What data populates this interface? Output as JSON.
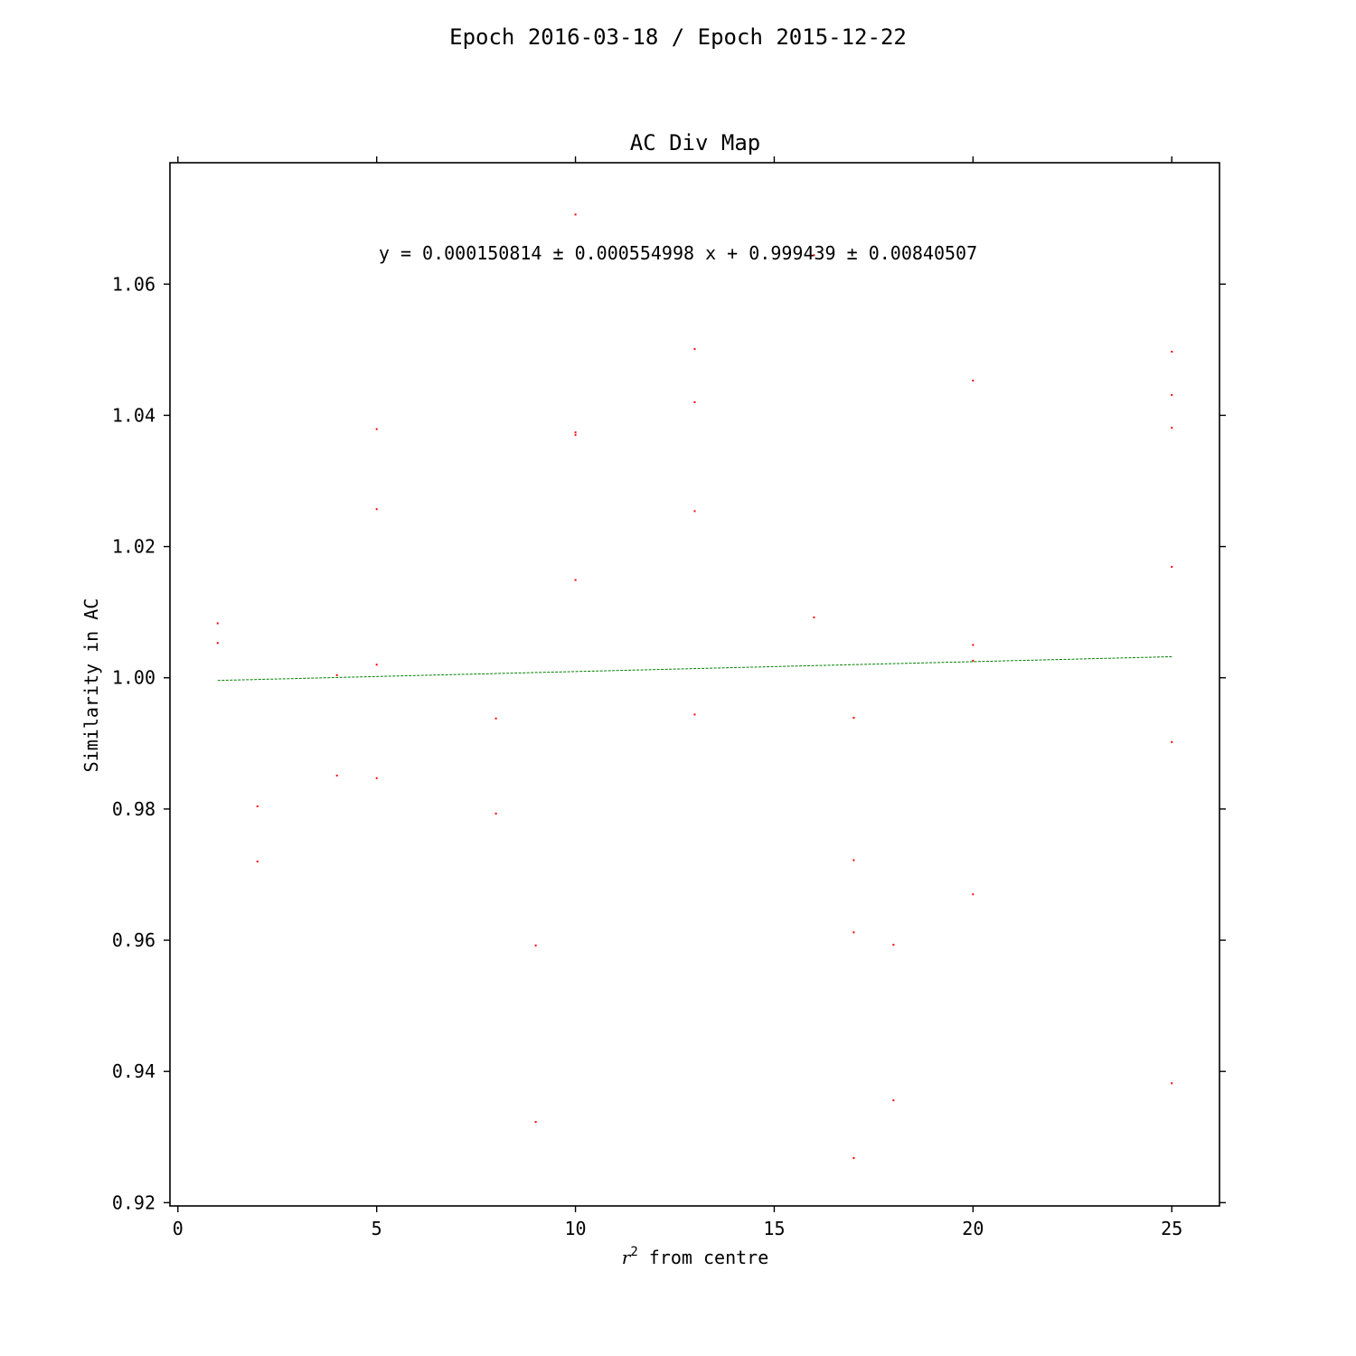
{
  "figure": {
    "suptitle": "Epoch 2016-03-18 / Epoch 2015-12-22"
  },
  "chart_data": {
    "type": "scatter",
    "title": "AC Div Map",
    "xlabel_var": "r",
    "xlabel_sup": "2",
    "xlabel_rest": " from centre",
    "ylabel": "Similarity in AC",
    "annotation": "y = 0.000150814 ± 0.000554998 x + 0.999439 ± 0.00840507",
    "xlim": [
      -0.2,
      26.2
    ],
    "ylim": [
      0.9195,
      1.0785
    ],
    "x_ticks": [
      0,
      5,
      10,
      15,
      20,
      25
    ],
    "x_tick_labels": [
      "0",
      "5",
      "10",
      "15",
      "20",
      "25"
    ],
    "y_ticks": [
      0.92,
      0.94,
      0.96,
      0.98,
      1.0,
      1.02,
      1.04,
      1.06
    ],
    "y_tick_labels": [
      "0.92",
      "0.94",
      "0.96",
      "0.98",
      "1.00",
      "1.02",
      "1.04",
      "1.06"
    ],
    "grid": false,
    "point_color": "#ff0000",
    "fit_color": "#008000",
    "points": [
      {
        "x": 1,
        "y": 1.0083
      },
      {
        "x": 1,
        "y": 1.0053
      },
      {
        "x": 2,
        "y": 0.9804
      },
      {
        "x": 2,
        "y": 0.972
      },
      {
        "x": 4,
        "y": 1.0004
      },
      {
        "x": 4,
        "y": 0.9851
      },
      {
        "x": 5,
        "y": 1.0379
      },
      {
        "x": 5,
        "y": 1.0257
      },
      {
        "x": 5,
        "y": 1.002
      },
      {
        "x": 5,
        "y": 0.9847
      },
      {
        "x": 8,
        "y": 0.9938
      },
      {
        "x": 8,
        "y": 0.9793
      },
      {
        "x": 9,
        "y": 0.9592
      },
      {
        "x": 9,
        "y": 0.9323
      },
      {
        "x": 10,
        "y": 1.0706
      },
      {
        "x": 10,
        "y": 1.0374
      },
      {
        "x": 10,
        "y": 1.037
      },
      {
        "x": 10,
        "y": 1.0149
      },
      {
        "x": 13,
        "y": 1.0501
      },
      {
        "x": 13,
        "y": 1.042
      },
      {
        "x": 13,
        "y": 1.0254
      },
      {
        "x": 13,
        "y": 0.9944
      },
      {
        "x": 16,
        "y": 1.0644
      },
      {
        "x": 16,
        "y": 1.0092
      },
      {
        "x": 17,
        "y": 0.9939
      },
      {
        "x": 17,
        "y": 0.9722
      },
      {
        "x": 17,
        "y": 0.9612
      },
      {
        "x": 17,
        "y": 0.9268
      },
      {
        "x": 18,
        "y": 0.9593
      },
      {
        "x": 18,
        "y": 0.9356
      },
      {
        "x": 20,
        "y": 1.0453
      },
      {
        "x": 20,
        "y": 1.005
      },
      {
        "x": 20,
        "y": 1.0026
      },
      {
        "x": 20,
        "y": 0.967
      },
      {
        "x": 25,
        "y": 1.0497
      },
      {
        "x": 25,
        "y": 1.0431
      },
      {
        "x": 25,
        "y": 1.0381
      },
      {
        "x": 25,
        "y": 1.0169
      },
      {
        "x": 25,
        "y": 0.9902
      },
      {
        "x": 25,
        "y": 0.9382
      }
    ],
    "fit_line": {
      "name": "linear fit",
      "slope": 0.000150814,
      "intercept": 0.999439,
      "x_range": [
        1,
        25
      ]
    }
  }
}
